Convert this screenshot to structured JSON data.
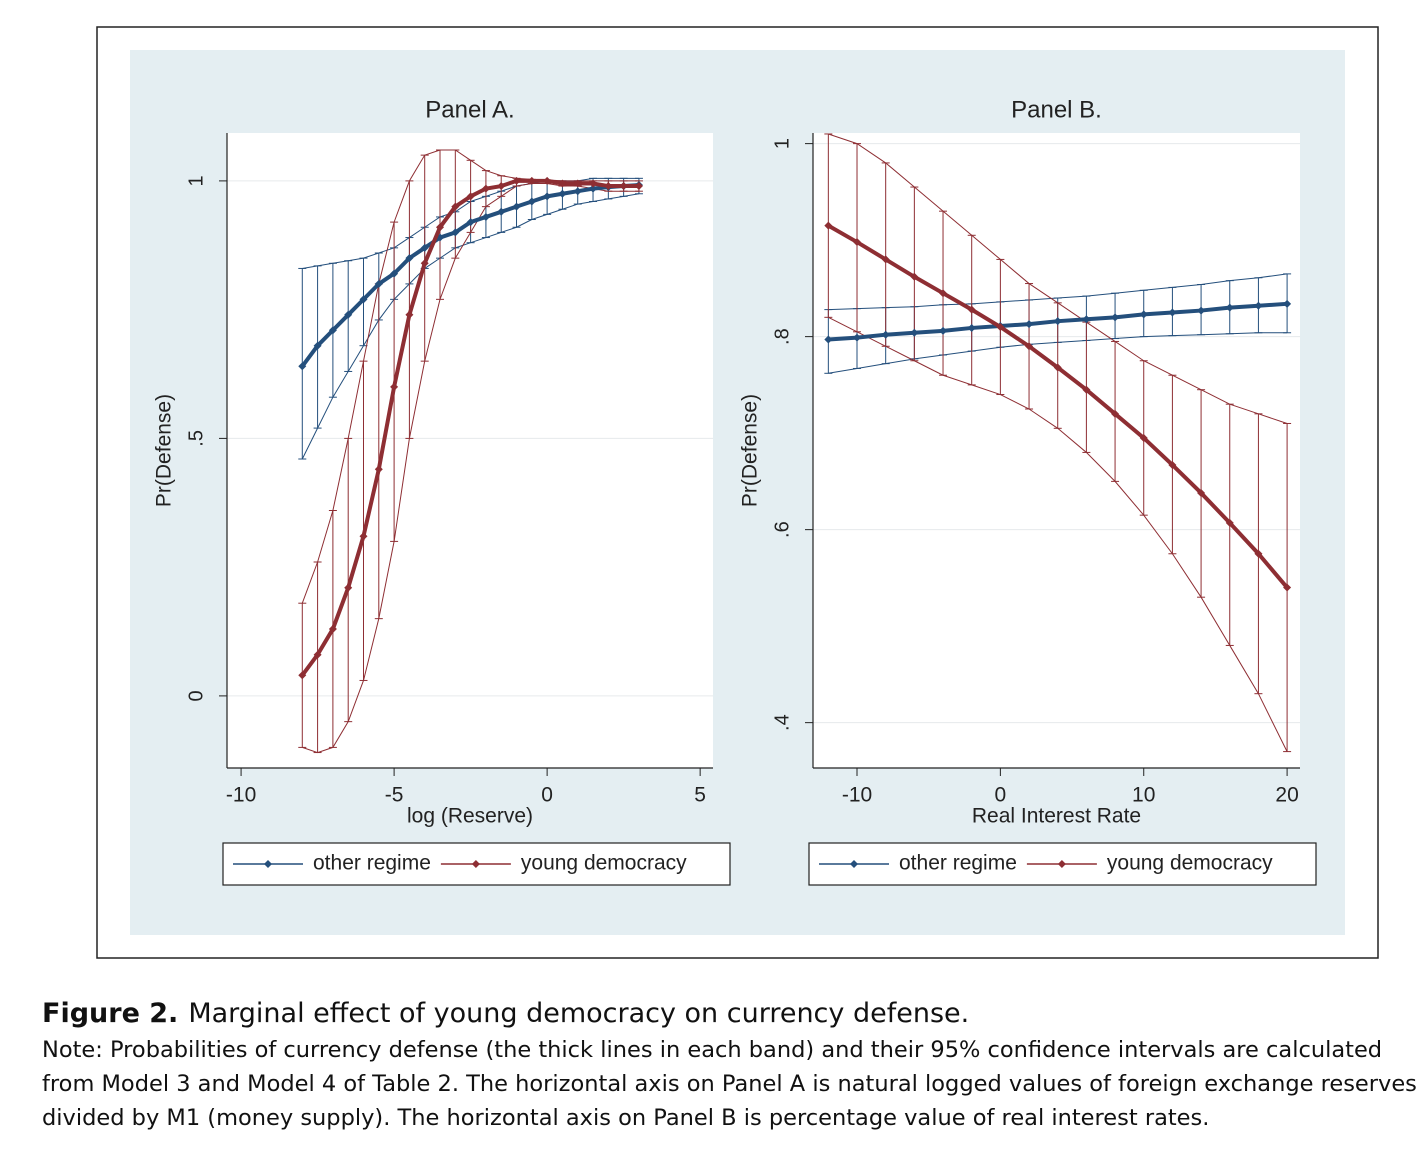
{
  "chart_data": [
    {
      "type": "line",
      "title": "Panel A.",
      "x_label": "log (Reserve)",
      "y_label": "Pr(Defense)",
      "x": [
        -8,
        -7.5,
        -7,
        -6.5,
        -6,
        -5.5,
        -5,
        -4.5,
        -4,
        -3.5,
        -3,
        -2.5,
        -2,
        -1.5,
        -1,
        -0.5,
        0,
        0.5,
        1,
        1.5,
        2,
        2.5,
        3
      ],
      "series": [
        {
          "name": "other regime",
          "color": "#244f7c",
          "values": [
            0.64,
            0.68,
            0.71,
            0.74,
            0.77,
            0.8,
            0.82,
            0.85,
            0.87,
            0.89,
            0.9,
            0.92,
            0.93,
            0.94,
            0.95,
            0.96,
            0.97,
            0.975,
            0.98,
            0.985,
            0.988,
            0.99,
            0.992
          ],
          "lower": [
            0.46,
            0.52,
            0.58,
            0.63,
            0.68,
            0.73,
            0.77,
            0.8,
            0.83,
            0.85,
            0.87,
            0.88,
            0.89,
            0.9,
            0.91,
            0.925,
            0.935,
            0.945,
            0.955,
            0.96,
            0.965,
            0.97,
            0.975
          ],
          "upper": [
            0.83,
            0.835,
            0.84,
            0.845,
            0.85,
            0.86,
            0.87,
            0.89,
            0.91,
            0.93,
            0.94,
            0.96,
            0.97,
            0.98,
            0.99,
            0.995,
            1,
            1,
            1,
            1.005,
            1.005,
            1.005,
            1.005
          ]
        },
        {
          "name": "young democracy",
          "color": "#8e2e33",
          "values": [
            0.04,
            0.08,
            0.13,
            0.21,
            0.31,
            0.44,
            0.6,
            0.74,
            0.84,
            0.91,
            0.95,
            0.97,
            0.985,
            0.99,
            1,
            1,
            1,
            0.995,
            0.995,
            0.995,
            0.99,
            0.99,
            0.99
          ],
          "lower": [
            -0.1,
            -0.11,
            -0.1,
            -0.05,
            0.03,
            0.15,
            0.3,
            0.5,
            0.65,
            0.77,
            0.85,
            0.9,
            0.95,
            0.97,
            0.99,
            0.995,
            0.995,
            0.99,
            0.99,
            0.985,
            0.98,
            0.98,
            0.98
          ],
          "upper": [
            0.18,
            0.26,
            0.36,
            0.5,
            0.65,
            0.8,
            0.92,
            1,
            1.05,
            1.06,
            1.06,
            1.04,
            1.02,
            1.01,
            1.005,
            1.003,
            1.002,
            1,
            1,
            1,
            1,
            1,
            1
          ]
        }
      ],
      "xlim": [
        -10.46,
        5.42
      ],
      "ylim": [
        -0.14,
        1.093
      ],
      "xticks": [
        -10,
        -5,
        0,
        5
      ],
      "yticks": [
        0,
        {
          "value": 0.5,
          "label": ".5"
        },
        1
      ],
      "grid": true
    },
    {
      "type": "line",
      "title": "Panel B.",
      "x_label": "Real Interest Rate",
      "y_label": "Pr(Defense)",
      "x": [
        -12,
        -10,
        -8,
        -6,
        -4,
        -2,
        0,
        2,
        4,
        6,
        8,
        10,
        12,
        14,
        16,
        18,
        20
      ],
      "series": [
        {
          "name": "other regime",
          "color": "#244f7c",
          "values": [
            0.797,
            0.799,
            0.802,
            0.804,
            0.806,
            0.809,
            0.811,
            0.813,
            0.816,
            0.818,
            0.82,
            0.823,
            0.825,
            0.827,
            0.83,
            0.832,
            0.834
          ],
          "lower": [
            0.762,
            0.767,
            0.772,
            0.777,
            0.781,
            0.785,
            0.789,
            0.792,
            0.794,
            0.796,
            0.798,
            0.8,
            0.801,
            0.802,
            0.803,
            0.804,
            0.804
          ],
          "upper": [
            0.828,
            0.829,
            0.83,
            0.831,
            0.833,
            0.834,
            0.836,
            0.838,
            0.84,
            0.842,
            0.845,
            0.848,
            0.851,
            0.854,
            0.858,
            0.861,
            0.865
          ]
        },
        {
          "name": "young democracy",
          "color": "#8e2e33",
          "values": [
            0.915,
            0.898,
            0.88,
            0.862,
            0.845,
            0.828,
            0.81,
            0.79,
            0.768,
            0.745,
            0.72,
            0.695,
            0.667,
            0.638,
            0.607,
            0.575,
            0.54
          ],
          "lower": [
            0.82,
            0.805,
            0.79,
            0.775,
            0.76,
            0.75,
            0.74,
            0.725,
            0.705,
            0.68,
            0.65,
            0.615,
            0.575,
            0.53,
            0.48,
            0.43,
            0.37
          ],
          "upper": [
            1.01,
            1,
            0.98,
            0.955,
            0.93,
            0.905,
            0.88,
            0.855,
            0.835,
            0.815,
            0.795,
            0.775,
            0.76,
            0.745,
            0.73,
            0.72,
            0.71
          ]
        }
      ],
      "xlim": [
        -13.07,
        20.9
      ],
      "ylim": [
        0.353,
        1.011
      ],
      "xticks": [
        -10,
        0,
        10,
        20
      ],
      "yticks": [
        {
          "value": 0.4,
          "label": ".4"
        },
        {
          "value": 0.6,
          "label": ".6"
        },
        {
          "value": 0.8,
          "label": ".8"
        },
        1
      ],
      "grid": true
    }
  ],
  "caption": {
    "label": "Figure 2.",
    "title": "Marginal effect of young democracy on currency defense.",
    "note": "Note: Probabilities of currency defense (the thick lines in each band) and their 95% confidence intervals are calculated from Model 3 and Model 4 of Table 2. The horizontal axis on Panel A is natural logged values of foreign exchange reserves divided by M1 (money supply). The horizontal axis on Panel B is percentage value of real interest rates."
  }
}
